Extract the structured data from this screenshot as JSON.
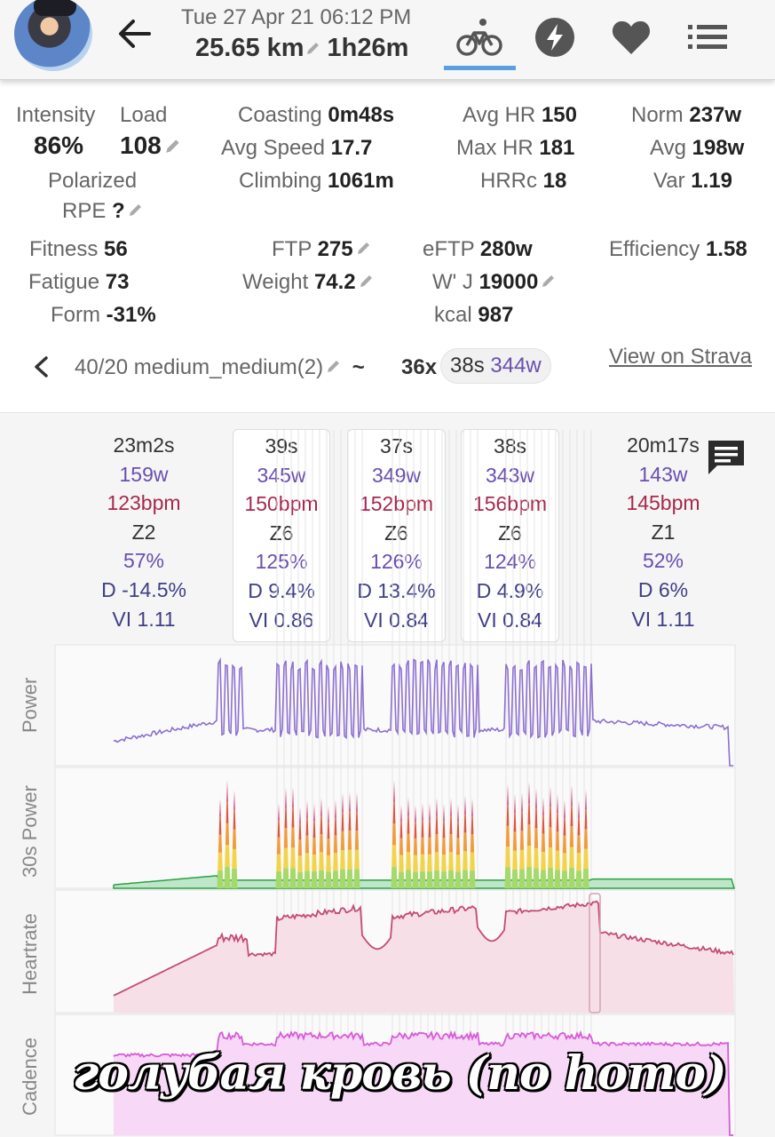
{
  "header": {
    "date": "Tue 27 Apr 21 06:12 PM",
    "distance": "25.65 km",
    "duration": "1h26m",
    "tabs": [
      "bike-icon",
      "bolt-icon",
      "heart-icon",
      "list-icon"
    ],
    "active_tab": "bike-icon"
  },
  "stats": {
    "intensity_label": "Intensity",
    "intensity": "86%",
    "load_label": "Load",
    "load": "108",
    "polarized": "Polarized",
    "rpe_label": "RPE",
    "rpe": "?",
    "coasting_label": "Coasting",
    "coasting": "0m48s",
    "avg_speed_label": "Avg Speed",
    "avg_speed": "17.7",
    "climbing_label": "Climbing",
    "climbing": "1061m",
    "avg_hr_label": "Avg HR",
    "avg_hr": "150",
    "max_hr_label": "Max HR",
    "max_hr": "181",
    "hrrc_label": "HRRc",
    "hrrc": "18",
    "norm_label": "Norm",
    "norm": "237w",
    "avg_label": "Avg",
    "avg": "198w",
    "var_label": "Var",
    "var": "1.19",
    "fitness_label": "Fitness",
    "fitness": "56",
    "fatigue_label": "Fatigue",
    "fatigue": "73",
    "form_label": "Form",
    "form": "-31%",
    "ftp_label": "FTP",
    "ftp": "275",
    "weight_label": "Weight",
    "weight": "74.2",
    "eftp_label": "eFTP",
    "eftp": "280w",
    "wj_label": "W' J",
    "wj": "19000",
    "kcal_label": "kcal",
    "kcal": "987",
    "efficiency_label": "Efficiency",
    "efficiency": "1.58"
  },
  "interval": {
    "name": "40/20 medium_medium(2)",
    "separator": "~",
    "repeat": "36x",
    "chip_time": "38s",
    "chip_watts": "344w",
    "strava_link": "View on Strava"
  },
  "laps": [
    {
      "time": "23m2s",
      "watts": "159w",
      "bpm": "123bpm",
      "zone": "Z2",
      "pct": "57%",
      "d": "D -14.5%",
      "vi": "VI 1.11"
    },
    {
      "time": "39s",
      "watts": "345w",
      "bpm": "150bpm",
      "zone": "Z6",
      "pct": "125%",
      "d": "D 9.4%",
      "vi": "VI 0.86"
    },
    {
      "time": "37s",
      "watts": "349w",
      "bpm": "152bpm",
      "zone": "Z6",
      "pct": "126%",
      "d": "D 13.4%",
      "vi": "VI 0.84"
    },
    {
      "time": "38s",
      "watts": "343w",
      "bpm": "156bpm",
      "zone": "Z6",
      "pct": "124%",
      "d": "D 4.9%",
      "vi": "VI 0.84"
    },
    {
      "time": "20m17s",
      "watts": "143w",
      "bpm": "145bpm",
      "zone": "Z1",
      "pct": "52%",
      "d": "D 6%",
      "vi": "VI 1.11"
    }
  ],
  "graphs": {
    "power": {
      "label": "Power",
      "ticks": [
        "379",
        "122",
        "0"
      ],
      "color": "#8e6fd0"
    },
    "power30": {
      "label": "30s Power",
      "ticks": [
        "355",
        "124",
        "0"
      ],
      "color": "#2aa145"
    },
    "heartrate": {
      "label": "Heartrate",
      "ticks": [
        "180",
        "107",
        "65"
      ],
      "color": "#c64a74"
    },
    "cadence": {
      "label": "Cadence",
      "ticks": [
        "108",
        "",
        "0"
      ],
      "color": "#d75bd9"
    }
  },
  "caption": "голубая кровь  (no homo)"
}
